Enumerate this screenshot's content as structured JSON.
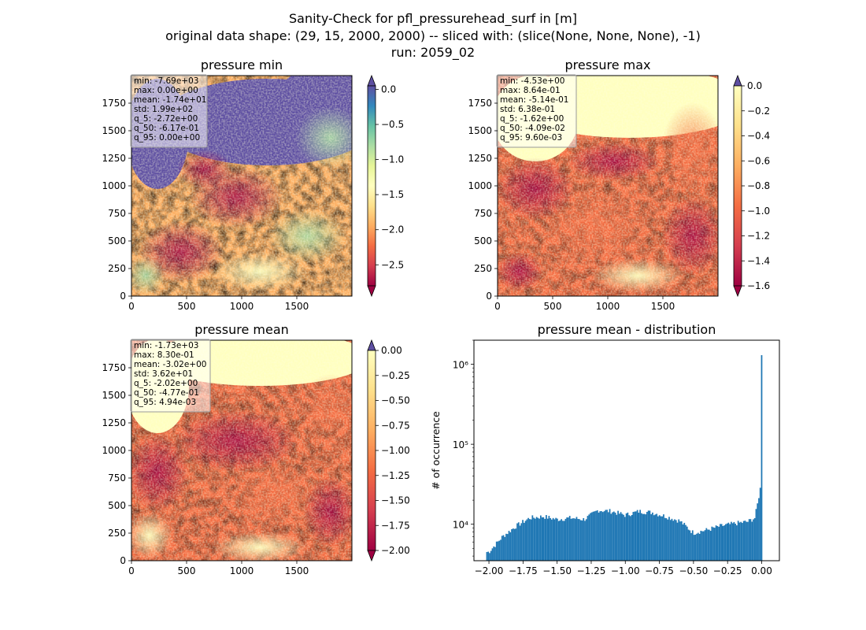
{
  "suptitle": {
    "line1": "Sanity-Check for pfl_pressurehead_surf in [m]",
    "line2": "original data shape: (29, 15, 2000, 2000) -- sliced with: (slice(None, None, None), -1)",
    "line3": "run: 2059_02"
  },
  "panels": [
    {
      "title": "pressure min",
      "colormap": "Spectral",
      "cbar_ticks": [
        "0.0",
        "-0.5",
        "-1.0",
        "-1.5",
        "-2.0",
        "-2.5"
      ],
      "cbar_range": [
        -2.8,
        0.05
      ],
      "cbar_extend": "both",
      "stats": [
        "min: -7.69e+03",
        "max: 0.00e+00",
        "mean: -1.74e+01",
        "std: 1.99e+02",
        "q_5: -2.72e+00",
        "q_50: -6.17e-01",
        "q_95: 0.00e+00"
      ]
    },
    {
      "title": "pressure max",
      "colormap": "Spectral",
      "cbar_ticks": [
        "0.0",
        "-0.2",
        "-0.4",
        "-0.6",
        "-0.8",
        "-1.0",
        "-1.2",
        "-1.4",
        "-1.6"
      ],
      "cbar_range": [
        -1.6,
        0.0
      ],
      "cbar_extend": "both",
      "stats": [
        "min: -4.53e+00",
        "max: 8.64e-01",
        "mean: -5.14e-01",
        "std: 6.38e-01",
        "q_5: -1.62e+00",
        "q_50: -4.09e-02",
        "q_95: 9.60e-03"
      ]
    },
    {
      "title": "pressure mean",
      "colormap": "Spectral",
      "cbar_ticks": [
        "0.00",
        "-0.25",
        "-0.50",
        "-0.75",
        "-1.00",
        "-1.25",
        "-1.50",
        "-1.75",
        "-2.00"
      ],
      "cbar_range": [
        -2.0,
        0.0
      ],
      "cbar_extend": "both",
      "stats": [
        "min: -1.73e+03",
        "max: 8.30e-01",
        "mean: -3.02e+00",
        "std: 3.62e+01",
        "q_5: -2.02e+00",
        "q_50: -4.77e-01",
        "q_95: 4.94e-03"
      ]
    }
  ],
  "map_axis": {
    "xticks": [
      "0",
      "500",
      "1000",
      "1500"
    ],
    "yticks": [
      "0",
      "250",
      "500",
      "750",
      "1000",
      "1250",
      "1500",
      "1750"
    ],
    "xlim": [
      0,
      2000
    ],
    "ylim": [
      0,
      2000
    ]
  },
  "histogram": {
    "title": "pressure mean - distribution",
    "ylabel": "# of occurrence",
    "xticks": [
      "−2.00",
      "−1.75",
      "−1.50",
      "−1.25",
      "−1.00",
      "−0.75",
      "−0.50",
      "−0.25",
      "0.00"
    ],
    "yticks": [
      "10⁴",
      "10⁵",
      "10⁶"
    ],
    "bar_color": "#1f77b4"
  },
  "chart_data": [
    {
      "type": "heatmap",
      "title": "pressure min",
      "xlim": [
        0,
        2000
      ],
      "ylim": [
        0,
        2000
      ],
      "colorbar_range": [
        -2.8,
        0.05
      ],
      "colorbar_ticks": [
        0.0,
        -0.5,
        -1.0,
        -1.5,
        -2.0,
        -2.5
      ]
    },
    {
      "type": "heatmap",
      "title": "pressure max",
      "xlim": [
        0,
        2000
      ],
      "ylim": [
        0,
        2000
      ],
      "colorbar_range": [
        -1.6,
        0.0
      ],
      "colorbar_ticks": [
        0.0,
        -0.2,
        -0.4,
        -0.6,
        -0.8,
        -1.0,
        -1.2,
        -1.4,
        -1.6
      ]
    },
    {
      "type": "heatmap",
      "title": "pressure mean",
      "xlim": [
        0,
        2000
      ],
      "ylim": [
        0,
        2000
      ],
      "colorbar_range": [
        -2.0,
        0.0
      ],
      "colorbar_ticks": [
        0.0,
        -0.25,
        -0.5,
        -0.75,
        -1.0,
        -1.25,
        -1.5,
        -1.75,
        -2.0
      ]
    },
    {
      "type": "bar",
      "title": "pressure mean - distribution",
      "ylabel": "# of occurrence",
      "yscale": "log",
      "xlim": [
        -2.11,
        0.13
      ],
      "ylim": [
        3500,
        2000000
      ],
      "x": [
        -2.0,
        -1.9,
        -1.8,
        -1.7,
        -1.6,
        -1.5,
        -1.4,
        -1.3,
        -1.2,
        -1.1,
        -1.0,
        -0.9,
        -0.8,
        -0.7,
        -0.6,
        -0.5,
        -0.4,
        -0.3,
        -0.2,
        -0.1,
        -0.05,
        -0.03,
        -0.01,
        0.0
      ],
      "values": [
        4500,
        7000,
        9500,
        12000,
        12500,
        11500,
        12000,
        11500,
        15000,
        14500,
        13000,
        14500,
        14000,
        12500,
        11000,
        7800,
        8500,
        9500,
        10200,
        10800,
        12000,
        18000,
        28000,
        1300000
      ],
      "color": "#1f77b4"
    }
  ]
}
